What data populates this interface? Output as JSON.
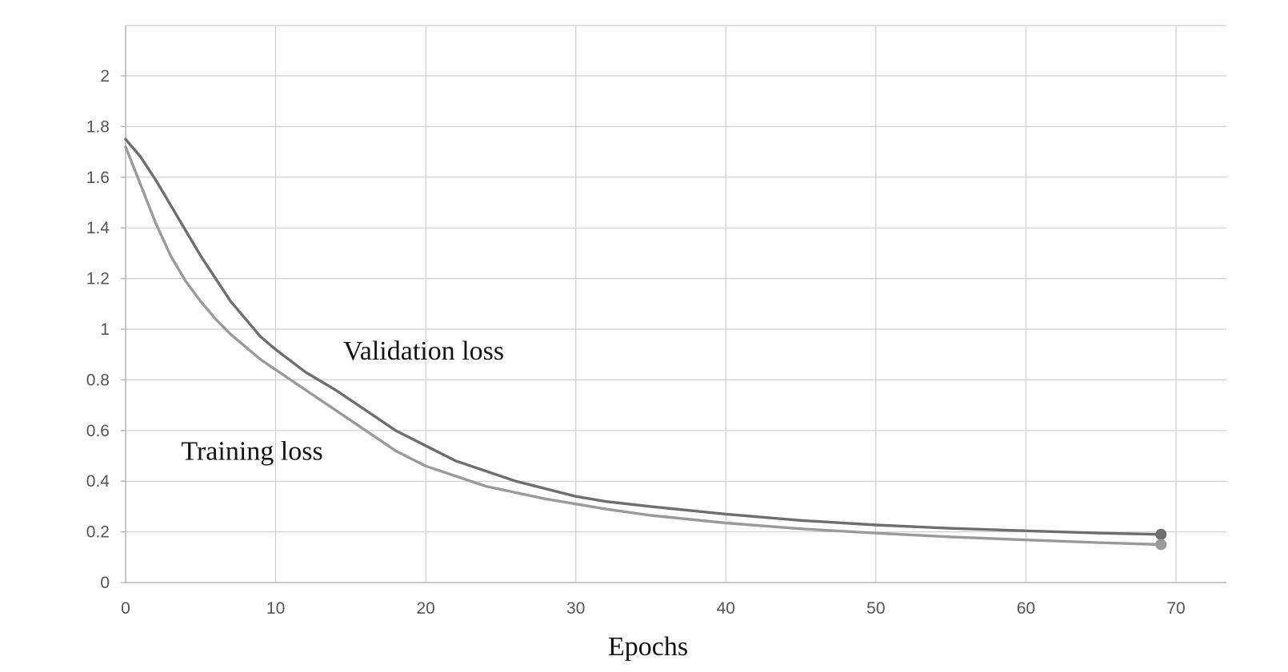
{
  "chart_data": {
    "type": "line",
    "xlabel": "Epochs",
    "ylabel": "",
    "xlim": [
      0,
      73
    ],
    "ylim": [
      0,
      2.2
    ],
    "x_ticks": [
      0,
      10,
      20,
      30,
      40,
      50,
      60,
      70
    ],
    "y_ticks": [
      0,
      0.2,
      0.4,
      0.6,
      0.8,
      1,
      1.2,
      1.4,
      1.6,
      1.8,
      2
    ],
    "y_tick_labels": [
      "0",
      "0.2",
      "0.4",
      "0.6",
      "0.8",
      "1",
      "1.2",
      "1.4",
      "1.6",
      "1.8",
      "2"
    ],
    "x_tick_labels": [
      "0",
      "10",
      "20",
      "30",
      "40",
      "50",
      "60",
      "70"
    ],
    "grid": true,
    "legend": "inline-labels",
    "series": [
      {
        "name": "Validation loss",
        "color": "#6e6e6e",
        "end_marker": true,
        "x": [
          0,
          1,
          2,
          3,
          4,
          5,
          6,
          7,
          8,
          9,
          10,
          12,
          14,
          16,
          18,
          20,
          22,
          24,
          26,
          28,
          30,
          32,
          35,
          40,
          45,
          50,
          55,
          60,
          65,
          69
        ],
        "y": [
          1.75,
          1.68,
          1.59,
          1.49,
          1.39,
          1.29,
          1.2,
          1.11,
          1.04,
          0.97,
          0.92,
          0.83,
          0.76,
          0.68,
          0.6,
          0.54,
          0.48,
          0.44,
          0.4,
          0.37,
          0.34,
          0.32,
          0.3,
          0.27,
          0.245,
          0.227,
          0.214,
          0.204,
          0.195,
          0.19
        ]
      },
      {
        "name": "Training loss",
        "color": "#9a9a9a",
        "end_marker": true,
        "x": [
          0,
          1,
          2,
          3,
          4,
          5,
          6,
          7,
          8,
          9,
          10,
          12,
          14,
          16,
          18,
          20,
          22,
          24,
          26,
          28,
          30,
          32,
          35,
          40,
          45,
          50,
          55,
          60,
          65,
          69
        ],
        "y": [
          1.72,
          1.57,
          1.42,
          1.29,
          1.19,
          1.11,
          1.04,
          0.98,
          0.93,
          0.88,
          0.84,
          0.76,
          0.68,
          0.6,
          0.52,
          0.46,
          0.42,
          0.38,
          0.355,
          0.33,
          0.31,
          0.29,
          0.265,
          0.235,
          0.212,
          0.195,
          0.18,
          0.168,
          0.157,
          0.15
        ]
      }
    ],
    "annotations": [
      {
        "text": "Validation loss",
        "x": 14.5,
        "y": 0.88
      },
      {
        "text": "Training loss",
        "x": 3.7,
        "y": 0.485
      }
    ]
  }
}
